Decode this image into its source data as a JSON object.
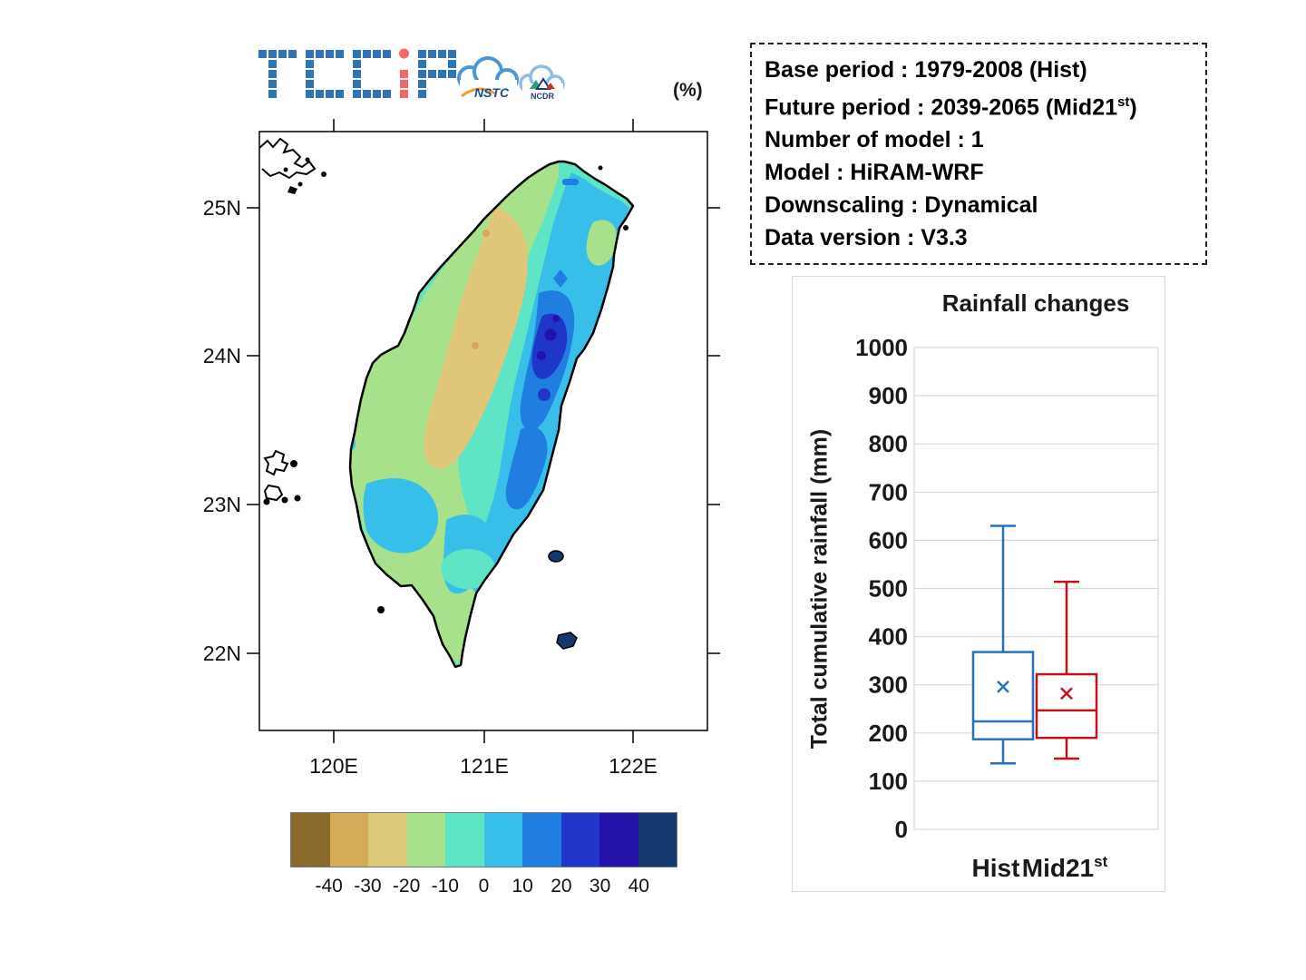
{
  "logo": {
    "brand": "TCCiP",
    "partner1": "NSTC",
    "partner2": "NCDR",
    "brand_blue": "#2E74B5",
    "brand_red": "#F2696B"
  },
  "map": {
    "unit_label": "(%)",
    "lat_ticks": [
      "25N",
      "24N",
      "23N",
      "22N"
    ],
    "lon_ticks": [
      "120E",
      "121E",
      "122E"
    ],
    "colorbar": {
      "labels": [
        "-40",
        "-30",
        "-20",
        "-10",
        "0",
        "10",
        "20",
        "30",
        "40"
      ],
      "colors": [
        "#8A6A2A",
        "#D6AB55",
        "#DCC979",
        "#A8E18C",
        "#5FE5C6",
        "#38BFE9",
        "#1F7EE0",
        "#2036C8",
        "#2312A8",
        "#14386E"
      ]
    }
  },
  "info_box": {
    "rows": [
      {
        "text": "Base period : 1979-2008 (Hist)"
      },
      {
        "pre": "Future period : 2039-2065 (Mid21",
        "sup": "st",
        "post": ")"
      },
      {
        "text": "Number of model : 1"
      },
      {
        "text": "Model  : HiRAM-WRF"
      },
      {
        "text": "Downscaling : Dynamical"
      },
      {
        "text": "Data version : V3.3"
      }
    ]
  },
  "chart_data": {
    "type": "boxplot",
    "title": "Rainfall changes",
    "ylabel": "Total cumulative rainfall (mm)",
    "ylim": [
      0,
      1000
    ],
    "ytick_step": 100,
    "grid": "horizontal",
    "categories": [
      {
        "label": "Hist",
        "sup": ""
      },
      {
        "label": "Mid21",
        "sup": "st"
      }
    ],
    "series": [
      {
        "name": "Hist",
        "color": "#2272BD",
        "whisker_low": 137,
        "q1": 187,
        "median": 224,
        "mean": 296,
        "q3": 368,
        "whisker_high": 630
      },
      {
        "name": "Mid21st",
        "color": "#C0111F",
        "whisker_low": 147,
        "q1": 190,
        "median": 247,
        "mean": 282,
        "q3": 322,
        "whisker_high": 514
      }
    ]
  }
}
